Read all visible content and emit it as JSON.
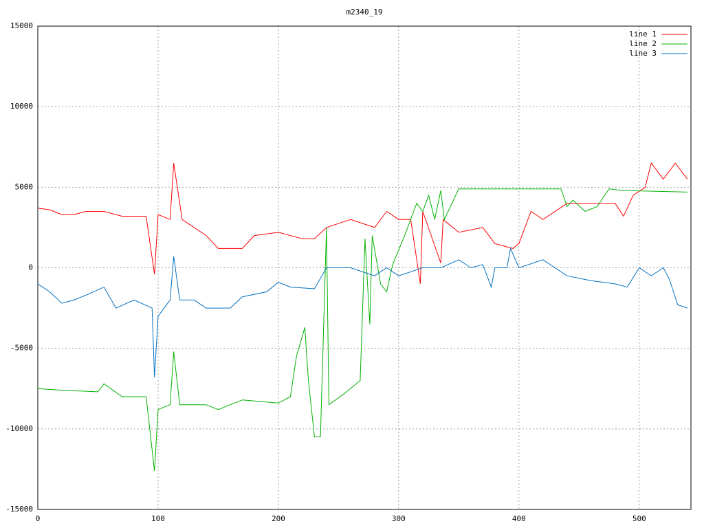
{
  "chart_data": {
    "type": "line",
    "title": "m2340_19",
    "xlim": [
      0,
      543
    ],
    "ylim": [
      -15000,
      15000
    ],
    "xticks": [
      0,
      100,
      200,
      300,
      400,
      500
    ],
    "yticks": [
      -15000,
      -10000,
      -5000,
      0,
      5000,
      10000,
      15000
    ],
    "grid": true,
    "legend": "top-right",
    "series": [
      {
        "name": "line 1",
        "color": "#ff0000",
        "x": [
          0,
          10,
          20,
          30,
          40,
          55,
          70,
          90,
          97,
          100,
          110,
          113,
          120,
          140,
          150,
          170,
          180,
          200,
          220,
          230,
          240,
          260,
          280,
          290,
          300,
          310,
          318,
          320,
          335,
          337,
          350,
          370,
          380,
          395,
          400,
          410,
          420,
          440,
          460,
          480,
          487,
          495,
          505,
          510,
          520,
          530,
          540
        ],
        "values": [
          3700,
          3600,
          3300,
          3300,
          3500,
          3500,
          3200,
          3200,
          -400,
          3300,
          3000,
          6500,
          3000,
          2000,
          1200,
          1200,
          2000,
          2200,
          1800,
          1800,
          2500,
          3000,
          2500,
          3500,
          3000,
          3000,
          -1000,
          3500,
          300,
          3000,
          2200,
          2500,
          1500,
          1200,
          1500,
          3500,
          3000,
          4000,
          4000,
          4000,
          3200,
          4500,
          5000,
          6500,
          5500,
          6500,
          5500
        ]
      },
      {
        "name": "line 2",
        "color": "#00b000",
        "x": [
          0,
          20,
          50,
          55,
          70,
          90,
          97,
          100,
          110,
          113,
          118,
          140,
          150,
          170,
          200,
          210,
          215,
          222,
          225,
          230,
          235,
          240,
          242,
          255,
          268,
          272,
          276,
          278,
          285,
          290,
          295,
          305,
          315,
          320,
          325,
          330,
          335,
          338,
          350,
          435,
          440,
          445,
          455,
          465,
          475,
          485,
          540
        ],
        "values": [
          -7500,
          -7600,
          -7700,
          -7200,
          -8000,
          -8000,
          -12600,
          -8800,
          -8500,
          -5200,
          -8500,
          -8500,
          -8800,
          -8200,
          -8400,
          -8000,
          -5500,
          -3700,
          -7000,
          -10500,
          -10500,
          2500,
          -8500,
          -7800,
          -7000,
          1800,
          -3500,
          2000,
          -1000,
          -1500,
          200,
          2000,
          4000,
          3500,
          4500,
          3000,
          4800,
          3000,
          4900,
          4900,
          3800,
          4200,
          3500,
          3800,
          4900,
          4800,
          4700
        ]
      },
      {
        "name": "line 3",
        "color": "#0070c0",
        "x": [
          0,
          10,
          20,
          30,
          40,
          55,
          65,
          80,
          95,
          97,
          100,
          110,
          113,
          118,
          130,
          140,
          160,
          170,
          190,
          200,
          210,
          230,
          240,
          260,
          280,
          290,
          300,
          320,
          335,
          350,
          360,
          370,
          377,
          380,
          390,
          393,
          400,
          420,
          440,
          460,
          480,
          490,
          500,
          510,
          520,
          525,
          532,
          540
        ],
        "values": [
          -1000,
          -1500,
          -2200,
          -2000,
          -1700,
          -1200,
          -2500,
          -2000,
          -2500,
          -6800,
          -3000,
          -2000,
          700,
          -2000,
          -2000,
          -2500,
          -2500,
          -1800,
          -1500,
          -900,
          -1200,
          -1300,
          0,
          0,
          -500,
          0,
          -500,
          0,
          0,
          500,
          0,
          200,
          -1200,
          0,
          0,
          1200,
          0,
          500,
          -500,
          -800,
          -1000,
          -1200,
          0,
          -500,
          0,
          -700,
          -2300,
          -2500
        ]
      }
    ]
  }
}
